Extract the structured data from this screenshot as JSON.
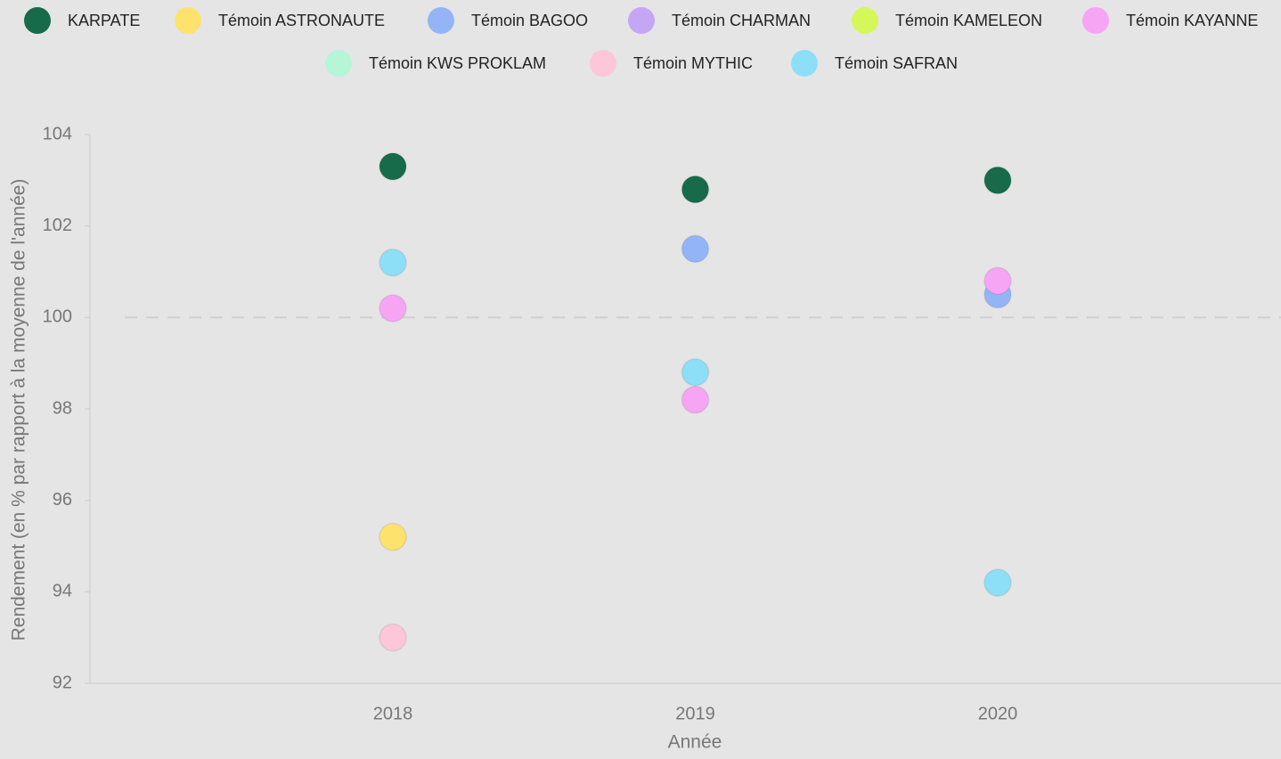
{
  "chart_data": {
    "type": "scatter",
    "x_label": "Année",
    "y_label": "Rendement (en % par rapport à la moyenne de l'année)",
    "categories": [
      "2018",
      "2019",
      "2020"
    ],
    "ylim": [
      92,
      104
    ],
    "yticks": [
      92,
      94,
      96,
      98,
      100,
      102,
      104
    ],
    "reference_line": 100,
    "series": [
      {
        "name": "KARPATE",
        "color": "#176b4a",
        "values": [
          103.3,
          102.8,
          103.0
        ]
      },
      {
        "name": "Témoin ASTRONAUTE",
        "color": "#fde26d",
        "values": [
          95.2,
          null,
          null
        ]
      },
      {
        "name": "Témoin BAGOO",
        "color": "#93b5f7",
        "values": [
          null,
          101.5,
          100.5
        ]
      },
      {
        "name": "Témoin CHARMAN",
        "color": "#c5a6f5",
        "values": [
          null,
          null,
          null
        ]
      },
      {
        "name": "Témoin KAMELEON",
        "color": "#d4f75a",
        "values": [
          null,
          null,
          null
        ]
      },
      {
        "name": "Témoin KAYANNE",
        "color": "#f6a5f5",
        "values": [
          100.2,
          98.2,
          100.8
        ]
      },
      {
        "name": "Témoin KWS PROKLAM",
        "color": "#b5f5d8",
        "values": [
          null,
          null,
          null
        ]
      },
      {
        "name": "Témoin MYTHIC",
        "color": "#fdc6d9",
        "values": [
          93.0,
          null,
          null
        ]
      },
      {
        "name": "Témoin SAFRAN",
        "color": "#8ddff8",
        "values": [
          101.2,
          98.8,
          94.2
        ]
      }
    ]
  }
}
